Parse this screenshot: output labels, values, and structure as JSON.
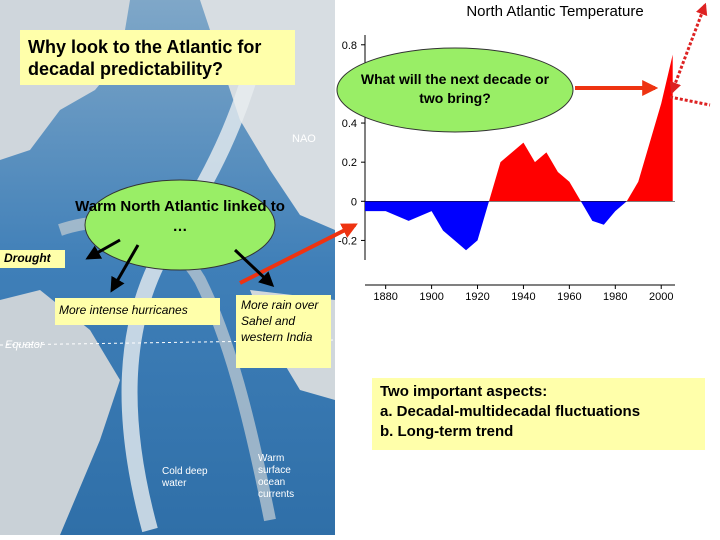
{
  "slide": {
    "question_box": "Why look to the Atlantic for decadal predictability?",
    "next_decade_oval": "What will the next decade or two bring?",
    "warm_oval": "Warm North Atlantic linked to …",
    "drought": "Drought",
    "hurricanes": "More intense hurricanes",
    "rain": "More rain over Sahel and western India",
    "aspects": {
      "heading": "Two important aspects:",
      "items": [
        "a.  Decadal-multidecadal fluctuations",
        "b.  Long-term trend"
      ]
    },
    "map_labels": {
      "nao": "NAO",
      "equator": "Equator",
      "cold": "Cold deep water",
      "warm": "Warm surface ocean currents"
    }
  },
  "chart_data": {
    "type": "area",
    "title": "North Atlantic Temperature",
    "x": [
      1871,
      1880,
      1890,
      1900,
      1905,
      1910,
      1915,
      1920,
      1925,
      1930,
      1935,
      1940,
      1945,
      1950,
      1955,
      1960,
      1965,
      1970,
      1975,
      1980,
      1985,
      1990,
      1995,
      2000,
      2005
    ],
    "values": [
      -0.05,
      -0.05,
      -0.1,
      -0.05,
      -0.15,
      -0.2,
      -0.25,
      -0.2,
      0,
      0.2,
      0.25,
      0.3,
      0.2,
      0.25,
      0.15,
      0.1,
      0,
      -0.1,
      -0.12,
      -0.05,
      0,
      0.1,
      0.3,
      0.5,
      0.75
    ],
    "colors": {
      "positive": "#ff0000",
      "negative": "#0000ff"
    },
    "xlim": [
      1871,
      2006
    ],
    "ylim": [
      -0.3,
      0.85
    ],
    "xticks": [
      1880,
      1900,
      1920,
      1940,
      1960,
      1980,
      2000
    ],
    "yticks": [
      -0.2,
      0,
      0.2,
      0.4,
      0.8
    ]
  }
}
